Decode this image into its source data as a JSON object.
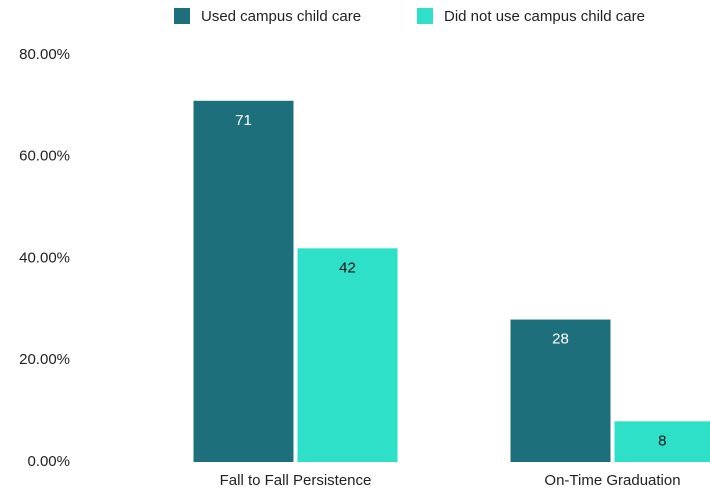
{
  "chart_data": {
    "type": "bar",
    "categories": [
      "Fall to Fall Persistence",
      "On-Time Graduation"
    ],
    "series": [
      {
        "name": "Used campus child care",
        "color": "#1d6f7c",
        "values": [
          71,
          28
        ]
      },
      {
        "name": "Did not use campus child care",
        "color": "#2fe0c8",
        "values": [
          42,
          8
        ]
      }
    ],
    "ylim": [
      0,
      80
    ],
    "yticks": [
      {
        "value": 0,
        "label": "0.00%"
      },
      {
        "value": 20,
        "label": "20.00%"
      },
      {
        "value": 40,
        "label": "40.00%"
      },
      {
        "value": 60,
        "label": "60.00%"
      },
      {
        "value": 80,
        "label": "80.00%"
      }
    ],
    "grid": false,
    "legend": "top"
  }
}
